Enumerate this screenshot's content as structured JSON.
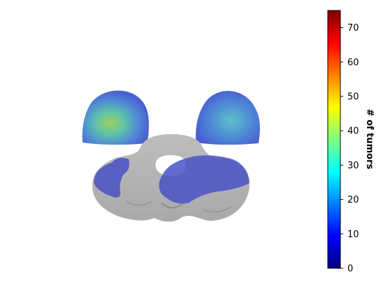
{
  "colorbar": {
    "label": "# of tumors",
    "colormap": "jet",
    "range": [
      0,
      75
    ],
    "ticks": [
      "0",
      "10",
      "20",
      "30",
      "40",
      "50",
      "60",
      "70"
    ]
  },
  "colors": {
    "jet_stops": [
      "#00007f",
      "#0000ff",
      "#007fff",
      "#00ffff",
      "#7fff7f",
      "#ffff00",
      "#ff7f00",
      "#ff0000",
      "#7f0000"
    ],
    "gray_matter": "#c3c3c3",
    "low_count_overlay": "#4a52c6"
  }
}
